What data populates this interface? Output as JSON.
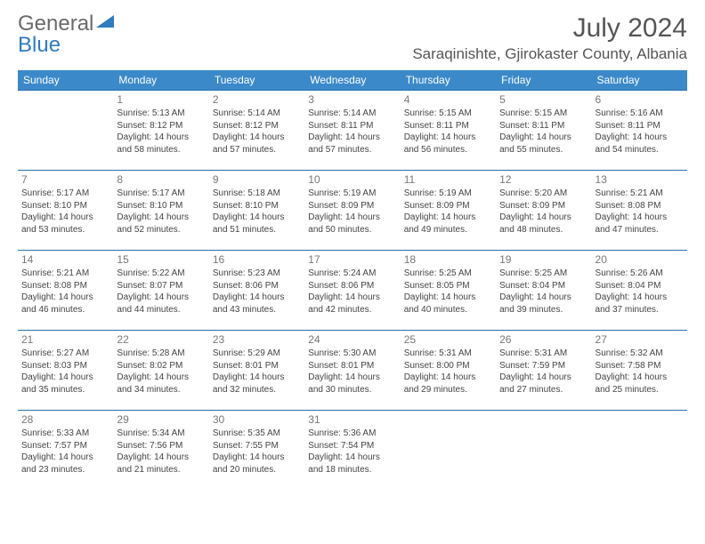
{
  "logo": {
    "text1": "General",
    "text2": "Blue"
  },
  "title": "July 2024",
  "location": "Saraqinishte, Gjirokaster County, Albania",
  "dayHeaders": [
    "Sunday",
    "Monday",
    "Tuesday",
    "Wednesday",
    "Thursday",
    "Friday",
    "Saturday"
  ],
  "colors": {
    "headerBg": "#3b89c9",
    "headerText": "#ffffff",
    "borderTop": "#2d6fa8",
    "logoGray": "#6a6a6a",
    "logoBlue": "#2f7bbf",
    "titleColor": "#555555",
    "textColor": "#444444"
  },
  "weeks": [
    [
      {
        "num": "",
        "lines": []
      },
      {
        "num": "1",
        "lines": [
          "Sunrise: 5:13 AM",
          "Sunset: 8:12 PM",
          "Daylight: 14 hours",
          "and 58 minutes."
        ]
      },
      {
        "num": "2",
        "lines": [
          "Sunrise: 5:14 AM",
          "Sunset: 8:12 PM",
          "Daylight: 14 hours",
          "and 57 minutes."
        ]
      },
      {
        "num": "3",
        "lines": [
          "Sunrise: 5:14 AM",
          "Sunset: 8:11 PM",
          "Daylight: 14 hours",
          "and 57 minutes."
        ]
      },
      {
        "num": "4",
        "lines": [
          "Sunrise: 5:15 AM",
          "Sunset: 8:11 PM",
          "Daylight: 14 hours",
          "and 56 minutes."
        ]
      },
      {
        "num": "5",
        "lines": [
          "Sunrise: 5:15 AM",
          "Sunset: 8:11 PM",
          "Daylight: 14 hours",
          "and 55 minutes."
        ]
      },
      {
        "num": "6",
        "lines": [
          "Sunrise: 5:16 AM",
          "Sunset: 8:11 PM",
          "Daylight: 14 hours",
          "and 54 minutes."
        ]
      }
    ],
    [
      {
        "num": "7",
        "lines": [
          "Sunrise: 5:17 AM",
          "Sunset: 8:10 PM",
          "Daylight: 14 hours",
          "and 53 minutes."
        ]
      },
      {
        "num": "8",
        "lines": [
          "Sunrise: 5:17 AM",
          "Sunset: 8:10 PM",
          "Daylight: 14 hours",
          "and 52 minutes."
        ]
      },
      {
        "num": "9",
        "lines": [
          "Sunrise: 5:18 AM",
          "Sunset: 8:10 PM",
          "Daylight: 14 hours",
          "and 51 minutes."
        ]
      },
      {
        "num": "10",
        "lines": [
          "Sunrise: 5:19 AM",
          "Sunset: 8:09 PM",
          "Daylight: 14 hours",
          "and 50 minutes."
        ]
      },
      {
        "num": "11",
        "lines": [
          "Sunrise: 5:19 AM",
          "Sunset: 8:09 PM",
          "Daylight: 14 hours",
          "and 49 minutes."
        ]
      },
      {
        "num": "12",
        "lines": [
          "Sunrise: 5:20 AM",
          "Sunset: 8:09 PM",
          "Daylight: 14 hours",
          "and 48 minutes."
        ]
      },
      {
        "num": "13",
        "lines": [
          "Sunrise: 5:21 AM",
          "Sunset: 8:08 PM",
          "Daylight: 14 hours",
          "and 47 minutes."
        ]
      }
    ],
    [
      {
        "num": "14",
        "lines": [
          "Sunrise: 5:21 AM",
          "Sunset: 8:08 PM",
          "Daylight: 14 hours",
          "and 46 minutes."
        ]
      },
      {
        "num": "15",
        "lines": [
          "Sunrise: 5:22 AM",
          "Sunset: 8:07 PM",
          "Daylight: 14 hours",
          "and 44 minutes."
        ]
      },
      {
        "num": "16",
        "lines": [
          "Sunrise: 5:23 AM",
          "Sunset: 8:06 PM",
          "Daylight: 14 hours",
          "and 43 minutes."
        ]
      },
      {
        "num": "17",
        "lines": [
          "Sunrise: 5:24 AM",
          "Sunset: 8:06 PM",
          "Daylight: 14 hours",
          "and 42 minutes."
        ]
      },
      {
        "num": "18",
        "lines": [
          "Sunrise: 5:25 AM",
          "Sunset: 8:05 PM",
          "Daylight: 14 hours",
          "and 40 minutes."
        ]
      },
      {
        "num": "19",
        "lines": [
          "Sunrise: 5:25 AM",
          "Sunset: 8:04 PM",
          "Daylight: 14 hours",
          "and 39 minutes."
        ]
      },
      {
        "num": "20",
        "lines": [
          "Sunrise: 5:26 AM",
          "Sunset: 8:04 PM",
          "Daylight: 14 hours",
          "and 37 minutes."
        ]
      }
    ],
    [
      {
        "num": "21",
        "lines": [
          "Sunrise: 5:27 AM",
          "Sunset: 8:03 PM",
          "Daylight: 14 hours",
          "and 35 minutes."
        ]
      },
      {
        "num": "22",
        "lines": [
          "Sunrise: 5:28 AM",
          "Sunset: 8:02 PM",
          "Daylight: 14 hours",
          "and 34 minutes."
        ]
      },
      {
        "num": "23",
        "lines": [
          "Sunrise: 5:29 AM",
          "Sunset: 8:01 PM",
          "Daylight: 14 hours",
          "and 32 minutes."
        ]
      },
      {
        "num": "24",
        "lines": [
          "Sunrise: 5:30 AM",
          "Sunset: 8:01 PM",
          "Daylight: 14 hours",
          "and 30 minutes."
        ]
      },
      {
        "num": "25",
        "lines": [
          "Sunrise: 5:31 AM",
          "Sunset: 8:00 PM",
          "Daylight: 14 hours",
          "and 29 minutes."
        ]
      },
      {
        "num": "26",
        "lines": [
          "Sunrise: 5:31 AM",
          "Sunset: 7:59 PM",
          "Daylight: 14 hours",
          "and 27 minutes."
        ]
      },
      {
        "num": "27",
        "lines": [
          "Sunrise: 5:32 AM",
          "Sunset: 7:58 PM",
          "Daylight: 14 hours",
          "and 25 minutes."
        ]
      }
    ],
    [
      {
        "num": "28",
        "lines": [
          "Sunrise: 5:33 AM",
          "Sunset: 7:57 PM",
          "Daylight: 14 hours",
          "and 23 minutes."
        ]
      },
      {
        "num": "29",
        "lines": [
          "Sunrise: 5:34 AM",
          "Sunset: 7:56 PM",
          "Daylight: 14 hours",
          "and 21 minutes."
        ]
      },
      {
        "num": "30",
        "lines": [
          "Sunrise: 5:35 AM",
          "Sunset: 7:55 PM",
          "Daylight: 14 hours",
          "and 20 minutes."
        ]
      },
      {
        "num": "31",
        "lines": [
          "Sunrise: 5:36 AM",
          "Sunset: 7:54 PM",
          "Daylight: 14 hours",
          "and 18 minutes."
        ]
      },
      {
        "num": "",
        "lines": []
      },
      {
        "num": "",
        "lines": []
      },
      {
        "num": "",
        "lines": []
      }
    ]
  ]
}
